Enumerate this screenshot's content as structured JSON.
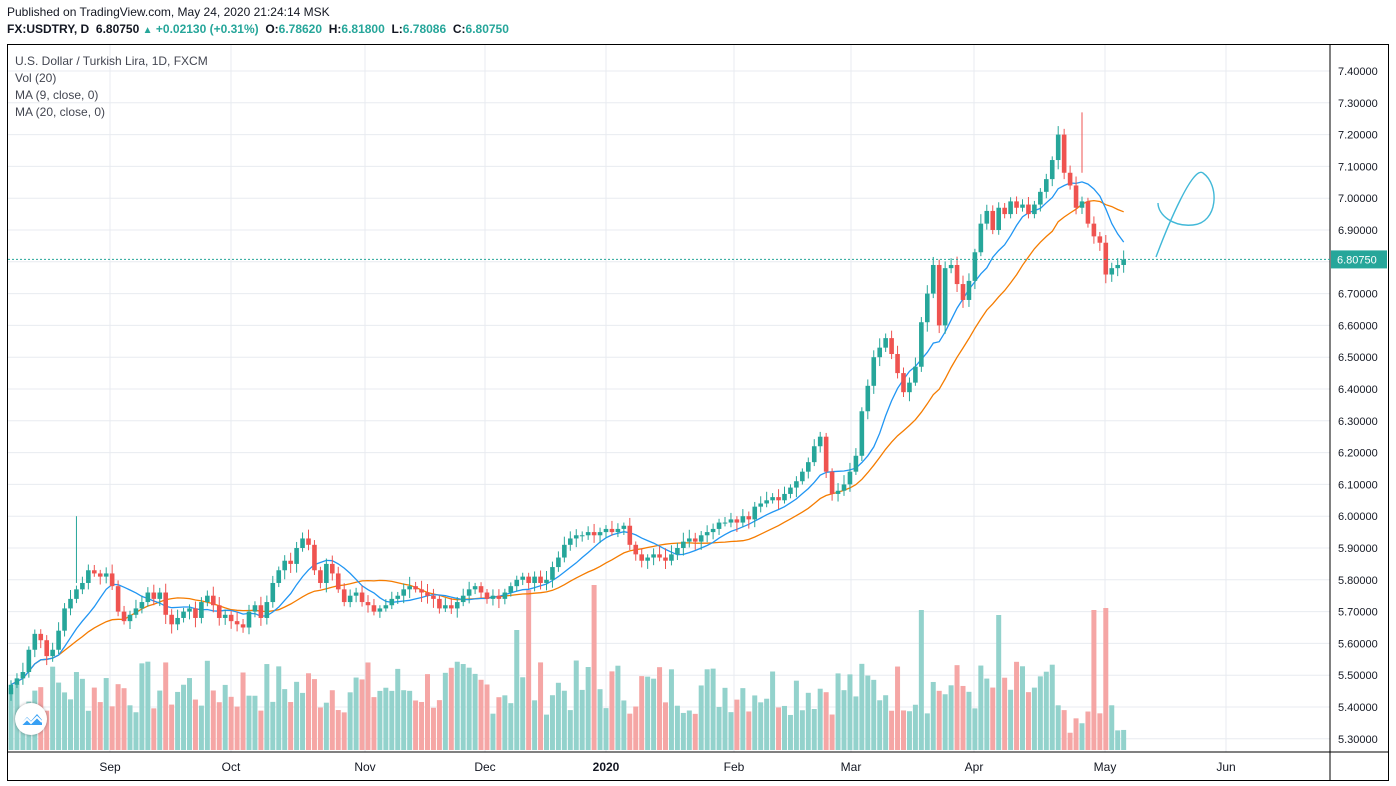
{
  "header": {
    "published": "Published on TradingView.com, May 24, 2020 21:24:14 MSK",
    "symbol": "FX:USDTRY, D",
    "last": "6.80750",
    "change": "+0.02130 (+0.31%)",
    "open_label": "O:",
    "open": "6.78620",
    "high_label": "H:",
    "high": "6.81800",
    "low_label": "L:",
    "low": "6.78086",
    "close_label": "C:",
    "close": "6.80750"
  },
  "legend": {
    "instrument": "U.S. Dollar / Turkish Lira, 1D, FXCM",
    "volume": "Vol (20)",
    "ma9": "MA (9, close, 0)",
    "ma20": "MA (20, close, 0)"
  },
  "colors": {
    "up": "#26a69a",
    "down": "#ef5350",
    "up_volume": "#93d2cc",
    "down_volume": "#f5a6a5",
    "ma9": "#2196f3",
    "ma20": "#f57c00",
    "last_price_bg": "#26a69a",
    "grid": "#e8ebf0"
  },
  "icons": {
    "logo": "tradingview-logo-icon"
  },
  "chart_data": {
    "type": "candlestick",
    "title": "U.S. Dollar / Turkish Lira, 1D, FXCM",
    "yaxis_ticks": [
      "7.40000",
      "7.30000",
      "7.20000",
      "7.10000",
      "7.00000",
      "6.90000",
      "6.80000",
      "6.70000",
      "6.60000",
      "6.50000",
      "6.40000",
      "6.30000",
      "6.20000",
      "6.10000",
      "6.00000",
      "5.90000",
      "5.80000",
      "5.70000",
      "5.60000",
      "5.50000",
      "5.40000",
      "5.30000"
    ],
    "ylim": [
      5.28,
      7.44
    ],
    "xaxis_labels": [
      "Sep",
      "Oct",
      "Nov",
      "Dec",
      "2020",
      "Feb",
      "Mar",
      "Apr",
      "May",
      "Jun"
    ],
    "last_price_label": "6.80750",
    "last_price": 6.8075,
    "close_series": [
      5.47,
      5.49,
      5.51,
      5.58,
      5.63,
      5.61,
      5.56,
      5.58,
      5.64,
      5.71,
      5.74,
      5.77,
      5.79,
      5.83,
      5.82,
      5.81,
      5.82,
      5.78,
      5.7,
      5.67,
      5.69,
      5.71,
      5.73,
      5.76,
      5.74,
      5.76,
      5.69,
      5.66,
      5.68,
      5.7,
      5.71,
      5.68,
      5.73,
      5.75,
      5.72,
      5.68,
      5.69,
      5.67,
      5.66,
      5.65,
      5.7,
      5.72,
      5.68,
      5.73,
      5.79,
      5.83,
      5.86,
      5.85,
      5.9,
      5.93,
      5.91,
      5.83,
      5.79,
      5.85,
      5.82,
      5.77,
      5.73,
      5.75,
      5.76,
      5.73,
      5.72,
      5.7,
      5.71,
      5.72,
      5.74,
      5.75,
      5.77,
      5.78,
      5.77,
      5.76,
      5.75,
      5.74,
      5.71,
      5.72,
      5.71,
      5.73,
      5.75,
      5.77,
      5.78,
      5.76,
      5.74,
      5.75,
      5.74,
      5.76,
      5.78,
      5.8,
      5.81,
      5.79,
      5.81,
      5.79,
      5.8,
      5.84,
      5.87,
      5.91,
      5.93,
      5.94,
      5.94,
      5.95,
      5.94,
      5.95,
      5.96,
      5.95,
      5.96,
      5.97,
      5.91,
      5.88,
      5.86,
      5.87,
      5.88,
      5.87,
      5.86,
      5.88,
      5.9,
      5.92,
      5.93,
      5.92,
      5.94,
      5.95,
      5.96,
      5.98,
      5.98,
      5.99,
      5.98,
      6.0,
      5.99,
      6.03,
      6.04,
      6.05,
      6.06,
      6.05,
      6.07,
      6.09,
      6.11,
      6.14,
      6.17,
      6.22,
      6.25,
      6.14,
      6.07,
      6.08,
      6.1,
      6.14,
      6.19,
      6.33,
      6.41,
      6.5,
      6.53,
      6.56,
      6.51,
      6.45,
      6.39,
      6.42,
      6.47,
      6.61,
      6.7,
      6.79,
      6.6,
      6.78,
      6.79,
      6.73,
      6.68,
      6.74,
      6.83,
      6.92,
      6.96,
      6.9,
      6.97,
      6.95,
      6.99,
      6.97,
      6.98,
      6.95,
      6.98,
      7.02,
      7.06,
      7.12,
      7.2,
      7.08,
      7.04,
      6.97,
      6.99,
      6.92,
      6.88,
      6.86,
      6.76,
      6.78,
      6.79,
      6.8075
    ],
    "series": [
      {
        "name": "MA (9, close, 0)",
        "type": "line"
      },
      {
        "name": "MA (20, close, 0)",
        "type": "line"
      },
      {
        "name": "Vol (20)",
        "type": "bar"
      }
    ],
    "annotation": "hand-drawn loop near May high"
  }
}
